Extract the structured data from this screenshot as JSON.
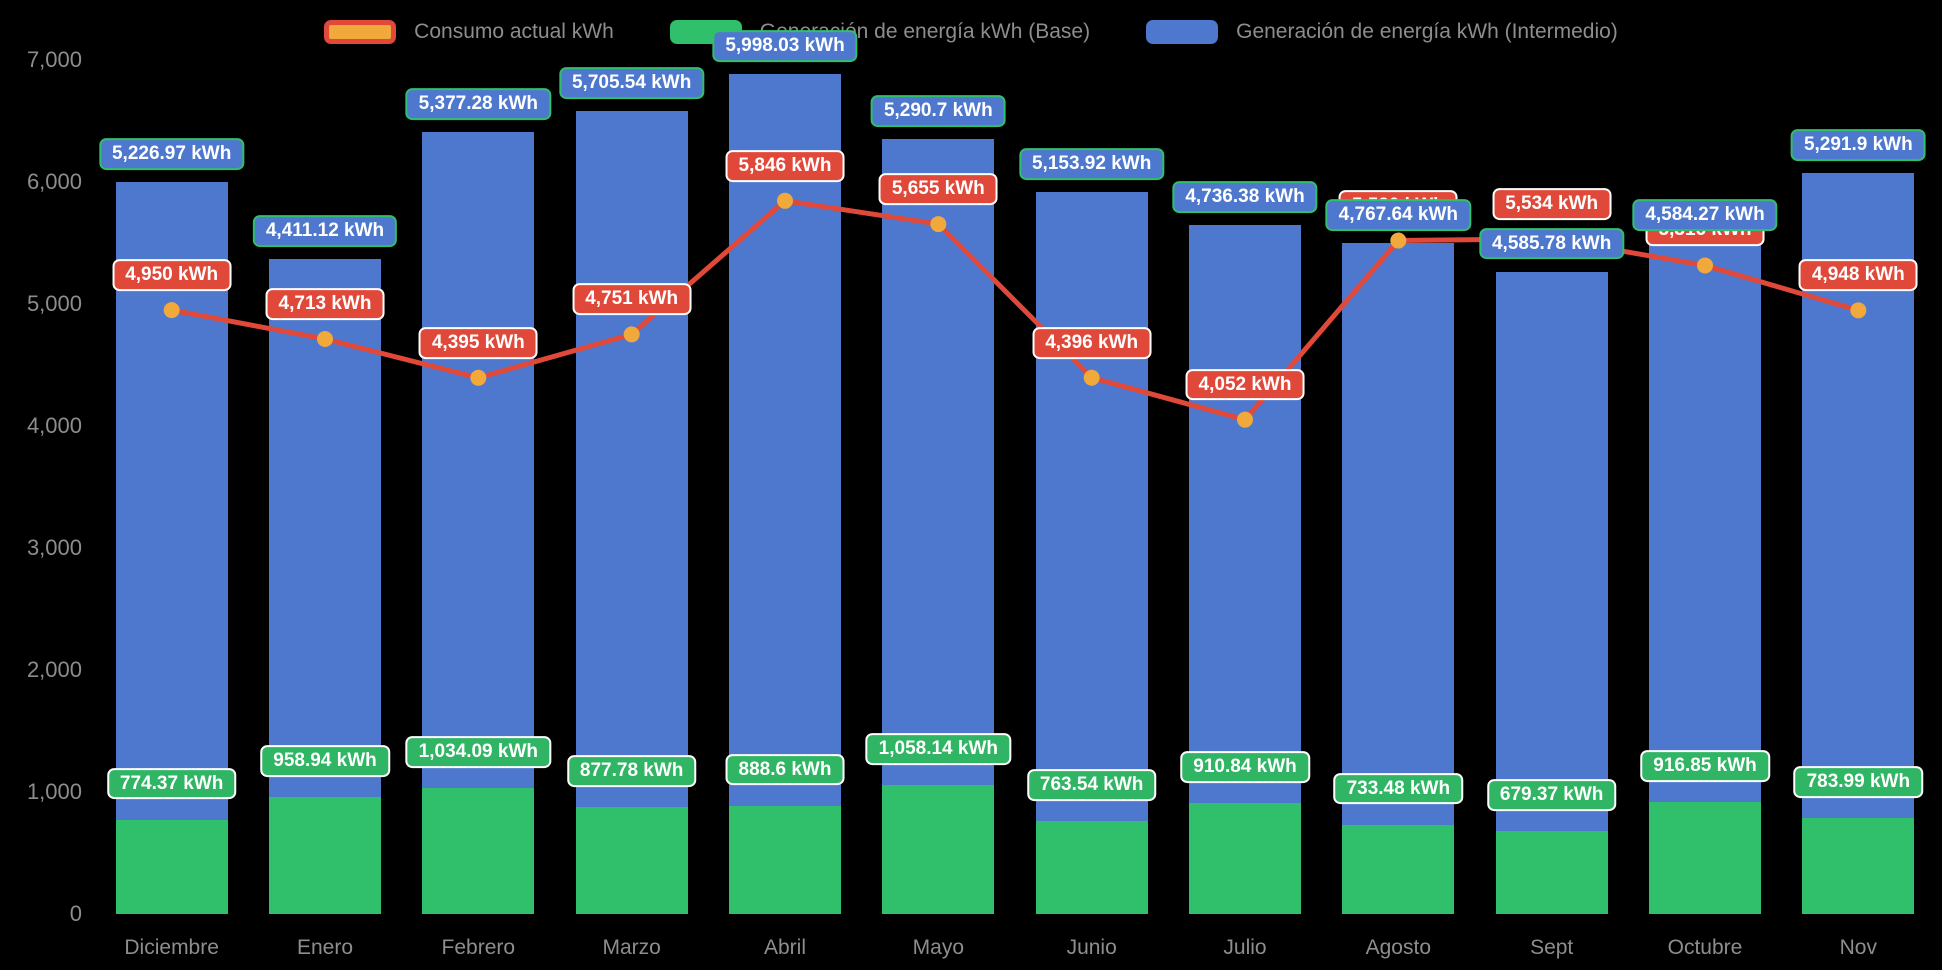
{
  "colors": {
    "background": "#000000",
    "axis_text": "#8d8d8d",
    "consumo_line": "#e0493a",
    "consumo_point": "#f2a93c",
    "base_bar": "#30bf6a",
    "intermedio_bar": "#4d78ce"
  },
  "legend": {
    "items": [
      {
        "label": "Consumo actual kWh",
        "marker_fill": "#f2a93c",
        "marker_border": "#e0493a"
      },
      {
        "label": "Generación de energía kWh (Base)",
        "marker_fill": "#30bf6a",
        "marker_border": ""
      },
      {
        "label": "Generación de energía kWh (Intermedio)",
        "marker_fill": "#4d78ce",
        "marker_border": ""
      }
    ]
  },
  "chart_data": {
    "type": "bar",
    "subtype": "stacked-bars-with-line-overlay",
    "title": "",
    "xlabel": "",
    "ylabel": "",
    "ylim": [
      0,
      7000
    ],
    "grid": false,
    "legend_position": "top",
    "categories": [
      "Diciembre",
      "Enero",
      "Febrero",
      "Marzo",
      "Abril",
      "Mayo",
      "Junio",
      "Julio",
      "Agosto",
      "Sept",
      "Octubre",
      "Nov"
    ],
    "y_ticks": {
      "values": [
        0,
        1000,
        2000,
        3000,
        4000,
        5000,
        6000,
        7000
      ],
      "labels": [
        "0",
        "1,000",
        "2,000",
        "3,000",
        "4,000",
        "5,000",
        "6,000",
        "7,000"
      ]
    },
    "series": [
      {
        "name": "Consumo actual kWh",
        "type": "line",
        "color": "#e0493a",
        "point_color": "#f2a93c",
        "label_bg": "#e0493a",
        "label_border": "#ffffff",
        "values": [
          4950,
          4713,
          4395,
          4751,
          5846,
          5655,
          4396,
          4052,
          5520,
          5534,
          5316,
          4948
        ],
        "labels": [
          "4,950 kWh",
          "4,713 kWh",
          "4,395 kWh",
          "4,751 kWh",
          "5,846 kWh",
          "5,655 kWh",
          "4,396 kWh",
          "4,052 kWh",
          "5,520 kWh",
          "5,534 kWh",
          "5,316 kWh",
          "4,948 kWh"
        ]
      },
      {
        "name": "Generación de energía kWh (Base)",
        "type": "bar",
        "stack": "generacion",
        "color": "#30bf6a",
        "label_bg": "#2fb563",
        "label_border": "#ffffff",
        "values": [
          774.37,
          958.94,
          1034.09,
          877.78,
          888.6,
          1058.14,
          763.54,
          910.84,
          733.48,
          679.37,
          916.85,
          783.99
        ],
        "labels": [
          "774.37 kWh",
          "958.94 kWh",
          "1,034.09 kWh",
          "877.78 kWh",
          "888.6 kWh",
          "1,058.14 kWh",
          "763.54 kWh",
          "910.84 kWh",
          "733.48 kWh",
          "679.37 kWh",
          "916.85 kWh",
          "783.99 kWh"
        ]
      },
      {
        "name": "Generación de energía kWh (Intermedio)",
        "type": "bar",
        "stack": "generacion",
        "color": "#4d78ce",
        "label_bg": "#4d78ce",
        "label_border": "#30bf6a",
        "values": [
          5226.97,
          4411.12,
          5377.28,
          5705.54,
          5998.03,
          5290.7,
          5153.92,
          4736.38,
          4767.64,
          4585.78,
          4584.27,
          5291.9
        ],
        "labels": [
          "5,226.97 kWh",
          "4,411.12 kWh",
          "5,377.28 kWh",
          "5,705.54 kWh",
          "5,998.03 kWh",
          "5,290.7 kWh",
          "5,153.92 kWh",
          "4,736.38 kWh",
          "4,767.64 kWh",
          "4,585.78 kWh",
          "4,584.27 kWh",
          "5,291.9 kWh"
        ]
      }
    ]
  }
}
